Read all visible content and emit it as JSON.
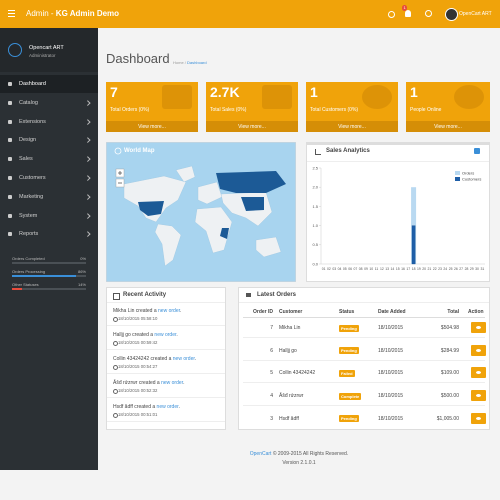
{
  "header": {
    "title": "Admin -",
    "title_strong": "KG Admin Demo",
    "notification_count": 1,
    "user": "OpenCart ART"
  },
  "sidebar": {
    "name": "Opencart ART",
    "role": "Administrator",
    "menu": [
      "Dashboard",
      "Catalog",
      "Extensions",
      "Design",
      "Sales",
      "Customers",
      "Marketing",
      "System",
      "Reports"
    ],
    "stats": [
      {
        "label": "Orders Completed",
        "percent": 0,
        "percent_label": "0%"
      },
      {
        "label": "Orders Processing",
        "percent": 86,
        "percent_label": "86%"
      },
      {
        "label": "Other Statuses",
        "percent": 14,
        "percent_label": "14%"
      }
    ]
  },
  "page": {
    "title": "Dashboard",
    "breadcrumb": [
      "Home",
      "Dashboard"
    ]
  },
  "tiles": [
    {
      "value": "7",
      "label": "Total Orders (0%)",
      "link": "View more..."
    },
    {
      "value": "2.7K",
      "label": "Total Sales (0%)",
      "link": "View more..."
    },
    {
      "value": "1",
      "label": "Total Customers (0%)",
      "link": "View more..."
    },
    {
      "value": "1",
      "label": "People Online",
      "link": "View more..."
    }
  ],
  "world_map": {
    "title": "World Map"
  },
  "chart_data": {
    "type": "bar",
    "title": "Sales Analytics",
    "categories": [
      "01",
      "02",
      "03",
      "04",
      "05",
      "06",
      "07",
      "08",
      "09",
      "10",
      "11",
      "12",
      "13",
      "14",
      "15",
      "16",
      "17",
      "18",
      "19",
      "20",
      "21",
      "22",
      "23",
      "24",
      "25",
      "26",
      "27",
      "28",
      "29",
      "30",
      "31"
    ],
    "series": [
      {
        "name": "Orders",
        "color": "#b9d9f1",
        "values": [
          0,
          0,
          0,
          0,
          0,
          0,
          0,
          0,
          0,
          0,
          0,
          0,
          0,
          0,
          0,
          0,
          0,
          2,
          0,
          0,
          0,
          0,
          0,
          0,
          0,
          0,
          0,
          0,
          0,
          0,
          0
        ]
      },
      {
        "name": "Customers",
        "color": "#1f5fa8",
        "values": [
          0,
          0,
          0,
          0,
          0,
          0,
          0,
          0,
          0,
          0,
          0,
          0,
          0,
          0,
          0,
          0,
          0,
          1,
          0,
          0,
          0,
          0,
          0,
          0,
          0,
          0,
          0,
          0,
          0,
          0,
          0
        ]
      }
    ],
    "ylim": [
      0,
      2.5
    ],
    "yticks": [
      {
        "value": 0,
        "label": "0.0"
      },
      0.5,
      {
        "value": 1,
        "label": "1.0"
      },
      1.5,
      {
        "value": 2,
        "label": "2.0"
      },
      2.5
    ],
    "legend": "top-right"
  },
  "recent_activity": {
    "title": "Recent Activity",
    "items": [
      {
        "before": "Mikha Lin created a",
        "link": "new order",
        "after": ".",
        "time": "18/10/2015 05:58:10"
      },
      {
        "before": "Halljj go created a",
        "link": "new order",
        "after": ".",
        "time": "18/10/2015 00:59:42"
      },
      {
        "before": "Collin 43424242 created a",
        "link": "new order",
        "after": ".",
        "time": "18/10/2015 00:54:27"
      },
      {
        "before": "Ăšđ rứzrwr created a",
        "link": "new order",
        "after": ".",
        "time": "18/10/2015 00:52:32"
      },
      {
        "before": "Hsdf ădff created a",
        "link": "new order",
        "after": ".",
        "time": "18/10/2015 00:51:01"
      }
    ]
  },
  "latest_orders": {
    "title": "Latest Orders",
    "columns": [
      "Order ID",
      "Customer",
      "Status",
      "Date Added",
      "Total",
      "Action"
    ],
    "rows": [
      [
        7,
        "Mikha Lin",
        "Pending",
        "18/10/2015",
        "$504.98"
      ],
      [
        6,
        "Halljj go",
        "Pending",
        "18/10/2015",
        "$284.99"
      ],
      [
        5,
        "Collin 43424242",
        "Failed",
        "18/10/2015",
        "$109.00"
      ],
      [
        4,
        "Ăšđ rứzrwr",
        "Complete",
        "18/10/2015",
        "$500.00"
      ],
      [
        3,
        "Hsdf ădff",
        "Pending",
        "18/10/2015",
        "$1,005.00"
      ]
    ]
  },
  "footer": {
    "link": "OpenCart",
    "text": "© 2009-2015 All Rights Reserved.",
    "version": "Version 2.1.0.1"
  }
}
